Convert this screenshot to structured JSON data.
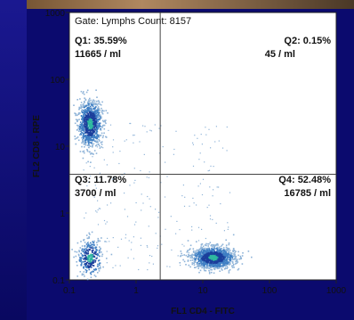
{
  "chart_data": {
    "type": "scatter",
    "subtype": "flow-cytometry-dot-plot",
    "title": "Gate: Lymphs Count: 8157",
    "xlabel": "FL1 CD4 - FITC",
    "ylabel": "FL2 CD8 - RPE",
    "xscale": "log",
    "yscale": "log",
    "xlim": [
      0.1,
      1000
    ],
    "ylim": [
      0.1,
      1000
    ],
    "x_ticks": [
      "0.1",
      "1",
      "10",
      "100",
      "1000"
    ],
    "y_ticks": [
      "0.1",
      "1",
      "10",
      "100",
      "1000"
    ],
    "gate_x": 2.3,
    "gate_y": 3.8,
    "quadrants": [
      {
        "id": "Q1",
        "label": "Q1: 35.59%",
        "count": "11665 / ml"
      },
      {
        "id": "Q2",
        "label": "Q2: 0.15%",
        "count": "45 / ml"
      },
      {
        "id": "Q3",
        "label": "Q3: 11.78%",
        "count": "3700 / ml"
      },
      {
        "id": "Q4",
        "label": "Q4: 52.48%",
        "count": "16785 / ml"
      }
    ],
    "populations": [
      {
        "center": [
          0.2,
          22
        ],
        "spread": [
          0.09,
          0.17
        ],
        "weight": 0.36
      },
      {
        "center": [
          0.2,
          0.22
        ],
        "spread": [
          0.09,
          0.14
        ],
        "weight": 0.12
      },
      {
        "center": [
          14,
          0.22
        ],
        "spread": [
          0.16,
          0.08
        ],
        "weight": 0.52
      }
    ],
    "grid": false,
    "colors": {
      "sparse": "#8fb4d8",
      "medium": "#3f7fc4",
      "dense": "#1b3f9c",
      "core": "#2fb8a0"
    }
  }
}
